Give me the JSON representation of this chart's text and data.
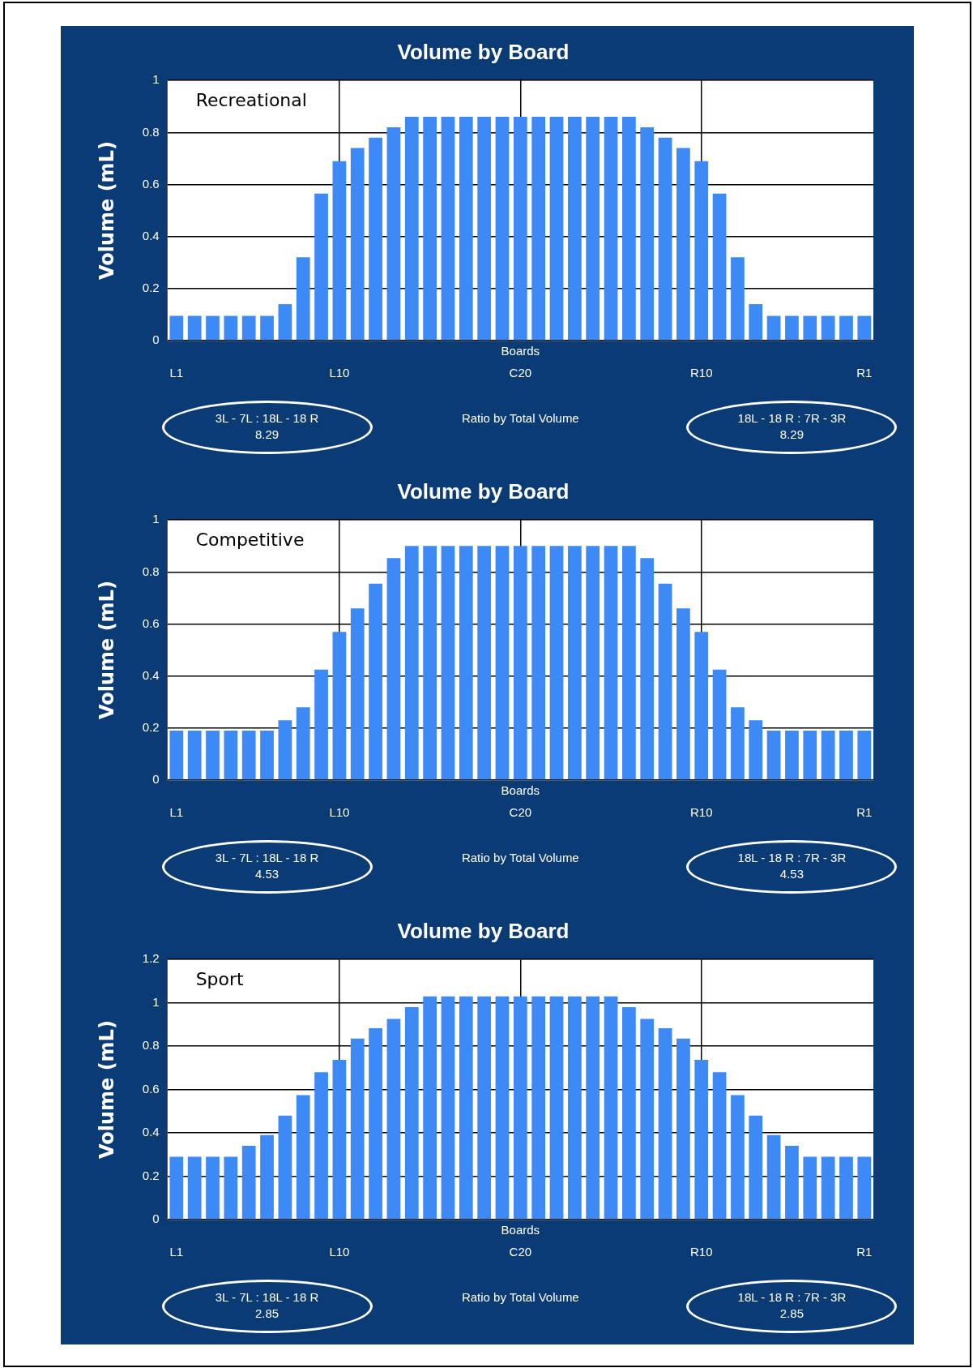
{
  "chart_data": [
    {
      "type": "bar",
      "title": "Volume by Board",
      "xlabel": "Boards",
      "ylabel": "Volume (mL)",
      "categories": [
        "L1",
        null,
        null,
        null,
        null,
        null,
        null,
        null,
        null,
        "L10",
        null,
        null,
        null,
        null,
        null,
        null,
        null,
        null,
        null,
        "C20",
        null,
        null,
        null,
        null,
        null,
        null,
        null,
        null,
        null,
        "R10",
        null,
        null,
        null,
        null,
        null,
        null,
        null,
        null,
        "R1"
      ],
      "values": [
        0.095,
        0.095,
        0.095,
        0.095,
        0.095,
        0.095,
        0.14,
        0.32,
        0.565,
        0.69,
        0.74,
        0.78,
        0.82,
        0.86,
        0.86,
        0.86,
        0.86,
        0.86,
        0.86,
        0.86,
        0.86,
        0.86,
        0.86,
        0.86,
        0.86,
        0.86,
        0.82,
        0.78,
        0.74,
        0.69,
        0.565,
        0.32,
        0.14,
        0.095,
        0.095,
        0.095,
        0.095,
        0.095,
        0.095
      ],
      "color": "#3d8af7",
      "ylim": [
        0,
        1
      ],
      "yticks": [
        0,
        0.2,
        0.4,
        0.6,
        0.8,
        1
      ],
      "grid": true,
      "annotations": [
        "Recreational",
        "3L - 7L : 18L - 18 R\n8.29",
        "Ratio by Total Volume",
        "18L - 18 R : 7R - 3R\n8.29"
      ]
    },
    {
      "type": "bar",
      "title": "Volume by Board",
      "xlabel": "Boards",
      "ylabel": "Volume (mL)",
      "categories": [
        "L1",
        null,
        null,
        null,
        null,
        null,
        null,
        null,
        null,
        "L10",
        null,
        null,
        null,
        null,
        null,
        null,
        null,
        null,
        null,
        "C20",
        null,
        null,
        null,
        null,
        null,
        null,
        null,
        null,
        null,
        "R10",
        null,
        null,
        null,
        null,
        null,
        null,
        null,
        null,
        "R1"
      ],
      "values": [
        0.19,
        0.19,
        0.19,
        0.19,
        0.19,
        0.19,
        0.23,
        0.28,
        0.425,
        0.57,
        0.66,
        0.755,
        0.853,
        0.9,
        0.9,
        0.9,
        0.9,
        0.9,
        0.9,
        0.9,
        0.9,
        0.9,
        0.9,
        0.9,
        0.9,
        0.9,
        0.853,
        0.755,
        0.66,
        0.57,
        0.425,
        0.28,
        0.23,
        0.19,
        0.19,
        0.19,
        0.19,
        0.19,
        0.19
      ],
      "color": "#3d8af7",
      "ylim": [
        0,
        1
      ],
      "yticks": [
        0,
        0.2,
        0.4,
        0.6,
        0.8,
        1
      ],
      "grid": true,
      "annotations": [
        "Competitive",
        "3L - 7L : 18L - 18 R\n4.53",
        "Ratio by Total Volume",
        "18L - 18 R : 7R - 3R\n4.53"
      ]
    },
    {
      "type": "bar",
      "title": "Volume by Board",
      "xlabel": "Boards",
      "ylabel": "Volume (mL)",
      "categories": [
        "L1",
        null,
        null,
        null,
        null,
        null,
        null,
        null,
        null,
        "L10",
        null,
        null,
        null,
        null,
        null,
        null,
        null,
        null,
        null,
        "C20",
        null,
        null,
        null,
        null,
        null,
        null,
        null,
        null,
        null,
        "R10",
        null,
        null,
        null,
        null,
        null,
        null,
        null,
        null,
        "R1"
      ],
      "values": [
        0.29,
        0.29,
        0.29,
        0.29,
        0.34,
        0.39,
        0.48,
        0.574,
        0.68,
        0.737,
        0.835,
        0.883,
        0.926,
        0.98,
        1.03,
        1.03,
        1.03,
        1.03,
        1.03,
        1.03,
        1.03,
        1.03,
        1.03,
        1.03,
        1.03,
        0.98,
        0.926,
        0.883,
        0.835,
        0.737,
        0.68,
        0.574,
        0.48,
        0.39,
        0.34,
        0.29,
        0.29,
        0.29,
        0.29
      ],
      "color": "#3d8af7",
      "ylim": [
        0,
        1.2
      ],
      "yticks": [
        0,
        0.2,
        0.4,
        0.6,
        0.8,
        1,
        1.2
      ],
      "grid": true,
      "annotations": [
        "Sport",
        "3L - 7L : 18L - 18 R\n2.85",
        "Ratio by Total Volume",
        "18L - 18 R : 7R - 3R\n2.85"
      ]
    }
  ]
}
